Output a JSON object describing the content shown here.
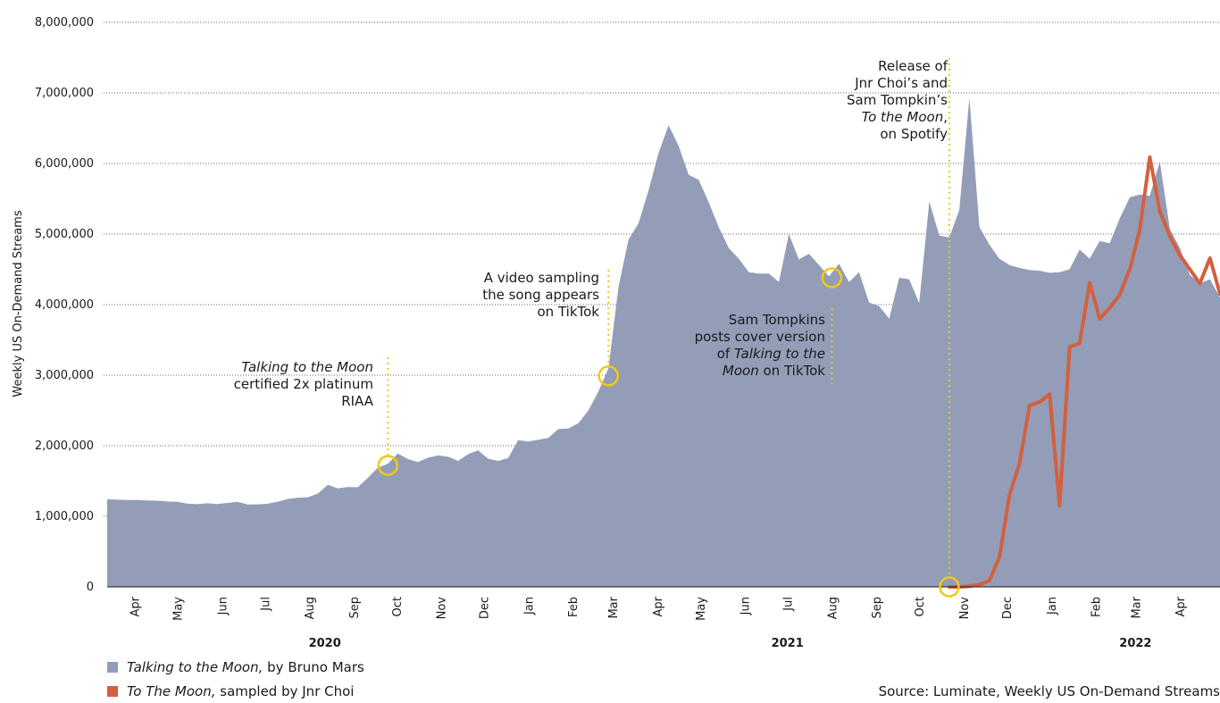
{
  "chart_data": {
    "type": "area",
    "ylabel": "Weekly US On-Demand Streams",
    "ylim": [
      0,
      8000000
    ],
    "yticks": [
      {
        "value": 0,
        "label": "0"
      },
      {
        "value": 1000000,
        "label": "1,000,000"
      },
      {
        "value": 2000000,
        "label": "2,000,000"
      },
      {
        "value": 3000000,
        "label": "3,000,000"
      },
      {
        "value": 4000000,
        "label": "4,000,000"
      },
      {
        "value": 5000000,
        "label": "5,000,000"
      },
      {
        "value": 6000000,
        "label": "6,000,000"
      },
      {
        "value": 7000000,
        "label": "7,000,000"
      },
      {
        "value": 8000000,
        "label": "8,000,000"
      }
    ],
    "grid": true,
    "x_start": "2020-03-13",
    "x_end": "2022-04-29",
    "months": [
      {
        "label": "Apr",
        "date": "2020-04-01"
      },
      {
        "label": "May",
        "date": "2020-05-01"
      },
      {
        "label": "Jun",
        "date": "2020-06-01"
      },
      {
        "label": "Jul",
        "date": "2020-07-01"
      },
      {
        "label": "Aug",
        "date": "2020-08-01"
      },
      {
        "label": "Sep",
        "date": "2020-09-01"
      },
      {
        "label": "Oct",
        "date": "2020-10-01"
      },
      {
        "label": "Nov",
        "date": "2020-11-01"
      },
      {
        "label": "Dec",
        "date": "2020-12-01"
      },
      {
        "label": "Jan",
        "date": "2021-01-01"
      },
      {
        "label": "Feb",
        "date": "2021-02-01"
      },
      {
        "label": "Mar",
        "date": "2021-03-01"
      },
      {
        "label": "Apr",
        "date": "2021-04-01"
      },
      {
        "label": "May",
        "date": "2021-05-01"
      },
      {
        "label": "Jun",
        "date": "2021-06-01"
      },
      {
        "label": "Jul",
        "date": "2021-07-01"
      },
      {
        "label": "Aug",
        "date": "2021-08-01"
      },
      {
        "label": "Sep",
        "date": "2021-09-01"
      },
      {
        "label": "Oct",
        "date": "2021-10-01"
      },
      {
        "label": "Nov",
        "date": "2021-11-01"
      },
      {
        "label": "Dec",
        "date": "2021-12-01"
      },
      {
        "label": "Jan",
        "date": "2022-01-01"
      },
      {
        "label": "Feb",
        "date": "2022-02-01"
      },
      {
        "label": "Mar",
        "date": "2022-03-01"
      },
      {
        "label": "Apr",
        "date": "2022-04-01"
      }
    ],
    "years": [
      {
        "label": "2020",
        "date": "2020-08-12"
      },
      {
        "label": "2021",
        "date": "2021-07-01"
      },
      {
        "label": "2022",
        "date": "2022-03-01"
      }
    ],
    "series": [
      {
        "name": "Talking to the Moon, by Bruno Mars",
        "type": "area",
        "color": "#939db8",
        "points": [
          [
            "2020-03-13",
            1240000
          ],
          [
            "2020-03-20",
            1235000
          ],
          [
            "2020-03-27",
            1230000
          ],
          [
            "2020-04-03",
            1232000
          ],
          [
            "2020-04-10",
            1225000
          ],
          [
            "2020-04-17",
            1222000
          ],
          [
            "2020-04-24",
            1210000
          ],
          [
            "2020-05-01",
            1205000
          ],
          [
            "2020-05-08",
            1178000
          ],
          [
            "2020-05-15",
            1172000
          ],
          [
            "2020-05-22",
            1185000
          ],
          [
            "2020-05-29",
            1175000
          ],
          [
            "2020-06-05",
            1190000
          ],
          [
            "2020-06-12",
            1205000
          ],
          [
            "2020-06-19",
            1168000
          ],
          [
            "2020-06-26",
            1170000
          ],
          [
            "2020-07-03",
            1178000
          ],
          [
            "2020-07-10",
            1205000
          ],
          [
            "2020-07-17",
            1245000
          ],
          [
            "2020-07-24",
            1262000
          ],
          [
            "2020-07-31",
            1268000
          ],
          [
            "2020-08-07",
            1320000
          ],
          [
            "2020-08-14",
            1445000
          ],
          [
            "2020-08-21",
            1395000
          ],
          [
            "2020-08-28",
            1415000
          ],
          [
            "2020-09-04",
            1412000
          ],
          [
            "2020-09-11",
            1545000
          ],
          [
            "2020-09-18",
            1690000
          ],
          [
            "2020-09-25",
            1745000
          ],
          [
            "2020-10-02",
            1890000
          ],
          [
            "2020-10-09",
            1810000
          ],
          [
            "2020-10-16",
            1770000
          ],
          [
            "2020-10-23",
            1830000
          ],
          [
            "2020-10-30",
            1865000
          ],
          [
            "2020-11-06",
            1845000
          ],
          [
            "2020-11-13",
            1785000
          ],
          [
            "2020-11-20",
            1880000
          ],
          [
            "2020-11-27",
            1935000
          ],
          [
            "2020-12-04",
            1815000
          ],
          [
            "2020-12-11",
            1785000
          ],
          [
            "2020-12-18",
            1825000
          ],
          [
            "2020-12-25",
            2080000
          ],
          [
            "2021-01-01",
            2060000
          ],
          [
            "2021-01-08",
            2085000
          ],
          [
            "2021-01-15",
            2110000
          ],
          [
            "2021-01-22",
            2235000
          ],
          [
            "2021-01-29",
            2245000
          ],
          [
            "2021-02-05",
            2320000
          ],
          [
            "2021-02-12",
            2500000
          ],
          [
            "2021-02-19",
            2770000
          ],
          [
            "2021-02-26",
            3100000
          ],
          [
            "2021-03-05",
            4250000
          ],
          [
            "2021-03-12",
            4920000
          ],
          [
            "2021-03-19",
            5150000
          ],
          [
            "2021-03-26",
            5620000
          ],
          [
            "2021-04-02",
            6150000
          ],
          [
            "2021-04-09",
            6540000
          ],
          [
            "2021-04-16",
            6250000
          ],
          [
            "2021-04-23",
            5840000
          ],
          [
            "2021-04-30",
            5770000
          ],
          [
            "2021-05-07",
            5450000
          ],
          [
            "2021-05-14",
            5100000
          ],
          [
            "2021-05-21",
            4800000
          ],
          [
            "2021-05-28",
            4650000
          ],
          [
            "2021-06-04",
            4460000
          ],
          [
            "2021-06-11",
            4440000
          ],
          [
            "2021-06-18",
            4440000
          ],
          [
            "2021-06-25",
            4320000
          ],
          [
            "2021-07-02",
            5000000
          ],
          [
            "2021-07-09",
            4640000
          ],
          [
            "2021-07-16",
            4720000
          ],
          [
            "2021-07-23",
            4560000
          ],
          [
            "2021-07-30",
            4400000
          ],
          [
            "2021-08-06",
            4580000
          ],
          [
            "2021-08-13",
            4320000
          ],
          [
            "2021-08-20",
            4460000
          ],
          [
            "2021-08-27",
            4030000
          ],
          [
            "2021-09-03",
            3980000
          ],
          [
            "2021-09-10",
            3800000
          ],
          [
            "2021-09-17",
            4380000
          ],
          [
            "2021-09-24",
            4360000
          ],
          [
            "2021-10-01",
            4020000
          ],
          [
            "2021-10-08",
            5460000
          ],
          [
            "2021-10-15",
            4980000
          ],
          [
            "2021-10-22",
            4950000
          ],
          [
            "2021-10-29",
            5340000
          ],
          [
            "2021-11-05",
            6930000
          ],
          [
            "2021-11-12",
            5100000
          ],
          [
            "2021-11-19",
            4850000
          ],
          [
            "2021-11-26",
            4650000
          ],
          [
            "2021-12-03",
            4560000
          ],
          [
            "2021-12-10",
            4520000
          ],
          [
            "2021-12-17",
            4490000
          ],
          [
            "2021-12-24",
            4480000
          ],
          [
            "2021-12-31",
            4450000
          ],
          [
            "2022-01-07",
            4460000
          ],
          [
            "2022-01-14",
            4500000
          ],
          [
            "2022-01-21",
            4780000
          ],
          [
            "2022-01-28",
            4650000
          ],
          [
            "2022-02-04",
            4900000
          ],
          [
            "2022-02-11",
            4870000
          ],
          [
            "2022-02-18",
            5220000
          ],
          [
            "2022-02-25",
            5520000
          ],
          [
            "2022-03-04",
            5560000
          ],
          [
            "2022-03-11",
            5540000
          ],
          [
            "2022-03-18",
            6030000
          ],
          [
            "2022-03-25",
            5070000
          ],
          [
            "2022-04-01",
            4800000
          ],
          [
            "2022-04-08",
            4420000
          ],
          [
            "2022-04-15",
            4300000
          ],
          [
            "2022-04-22",
            4360000
          ],
          [
            "2022-04-29",
            4100000
          ]
        ]
      },
      {
        "name": "To The Moon, sampled by Jnr Choi",
        "type": "line",
        "color": "#d3603f",
        "points": [
          [
            "2021-10-22",
            0
          ],
          [
            "2021-10-29",
            0
          ],
          [
            "2021-11-05",
            10000
          ],
          [
            "2021-11-12",
            30000
          ],
          [
            "2021-11-19",
            90000
          ],
          [
            "2021-11-26",
            420000
          ],
          [
            "2021-12-03",
            1300000
          ],
          [
            "2021-12-10",
            1750000
          ],
          [
            "2021-12-17",
            2570000
          ],
          [
            "2021-12-24",
            2620000
          ],
          [
            "2021-12-31",
            2730000
          ],
          [
            "2022-01-07",
            1150000
          ],
          [
            "2022-01-14",
            3400000
          ],
          [
            "2022-01-21",
            3450000
          ],
          [
            "2022-01-28",
            4310000
          ],
          [
            "2022-02-04",
            3800000
          ],
          [
            "2022-02-11",
            3950000
          ],
          [
            "2022-02-18",
            4140000
          ],
          [
            "2022-02-25",
            4500000
          ],
          [
            "2022-03-04",
            5060000
          ],
          [
            "2022-03-11",
            6090000
          ],
          [
            "2022-03-18",
            5320000
          ],
          [
            "2022-03-25",
            4970000
          ],
          [
            "2022-04-01",
            4700000
          ],
          [
            "2022-04-08",
            4500000
          ],
          [
            "2022-04-15",
            4300000
          ],
          [
            "2022-04-22",
            4660000
          ],
          [
            "2022-04-29",
            4150000
          ]
        ]
      }
    ],
    "annotations": [
      {
        "id": "riaa",
        "date": "2020-09-25",
        "circle_value": 1720000,
        "lines": [
          [
            {
              "t": "Talking to the Moon",
              "i": true
            }
          ],
          [
            {
              "t": "certified 2x platinum"
            }
          ],
          [
            {
              "t": "RIAA"
            }
          ]
        ]
      },
      {
        "id": "tiktok",
        "date": "2021-02-26",
        "circle_value": 2990000,
        "lines": [
          [
            {
              "t": "A video sampling"
            }
          ],
          [
            {
              "t": "the song appears"
            }
          ],
          [
            {
              "t": "on TikTok"
            }
          ]
        ]
      },
      {
        "id": "cover",
        "date": "2021-08-01",
        "circle_value": 4380000,
        "lines": [
          [
            {
              "t": "Sam Tompkins"
            }
          ],
          [
            {
              "t": "posts cover version"
            }
          ],
          [
            {
              "t": "of "
            },
            {
              "t": "Talking to the",
              "i": true
            }
          ],
          [
            {
              "t": "Moon",
              "i": true
            },
            {
              "t": " on TikTok"
            }
          ]
        ]
      },
      {
        "id": "release",
        "date": "2021-10-22",
        "circle_value": 0,
        "lines": [
          [
            {
              "t": "Release of"
            }
          ],
          [
            {
              "t": "Jnr Choi’s and"
            }
          ],
          [
            {
              "t": "Sam Tompkin’s"
            }
          ],
          [
            {
              "t": "To the Moon",
              "i": true
            },
            {
              "t": ","
            }
          ],
          [
            {
              "t": "on Spotify"
            }
          ]
        ]
      }
    ]
  },
  "legend": {
    "item1_title": "Talking to the Moon,",
    "item1_rest": " by Bruno Mars",
    "item2_title": "To The Moon,",
    "item2_rest": " sampled by Jnr Choi"
  },
  "source": "Source: Luminate, Weekly US On-Demand Streams",
  "colors": {
    "highlight": "#f2c811",
    "grid": "#666666"
  }
}
